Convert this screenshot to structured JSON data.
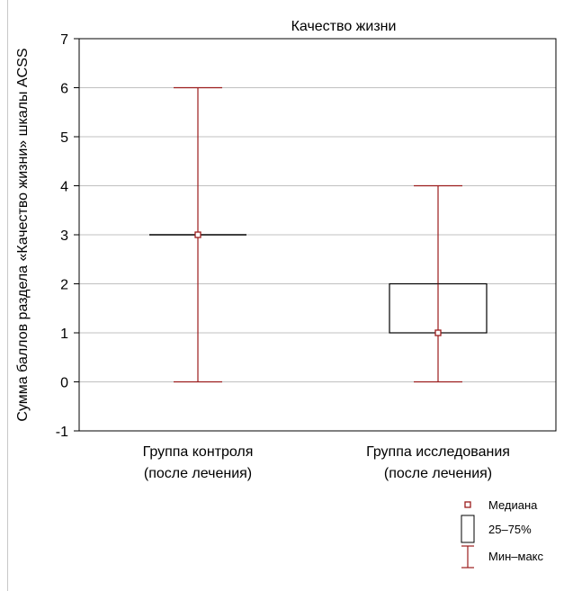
{
  "chart_data": {
    "type": "boxplot",
    "title": "Качество жизни",
    "xlabel": "",
    "ylabel": "Сумма баллов раздела «Качество жизни» шкалы ACSS",
    "ylim": [
      -1,
      7
    ],
    "yticks": [
      -1,
      0,
      1,
      2,
      3,
      4,
      5,
      6,
      7
    ],
    "grid": true,
    "categories": [
      [
        "Группа контроля",
        "(после лечения)"
      ],
      [
        "Группа исследования",
        "(после лечения)"
      ]
    ],
    "series": [
      {
        "median": 3,
        "q1": 3,
        "q3": 3,
        "min": 0,
        "max": 6
      },
      {
        "median": 1,
        "q1": 1,
        "q3": 2,
        "min": 0,
        "max": 4
      }
    ],
    "legend": {
      "position": "bottom-right",
      "items": [
        {
          "key": "median",
          "label": "Медиана"
        },
        {
          "key": "box",
          "label": "25–75%"
        },
        {
          "key": "whisker",
          "label": "Мин–макс"
        }
      ]
    },
    "colors": {
      "whisker": "#9b1c1c",
      "median_marker": "#9b1c1c",
      "box": "#000000",
      "grid": "#c0c0c0"
    }
  }
}
